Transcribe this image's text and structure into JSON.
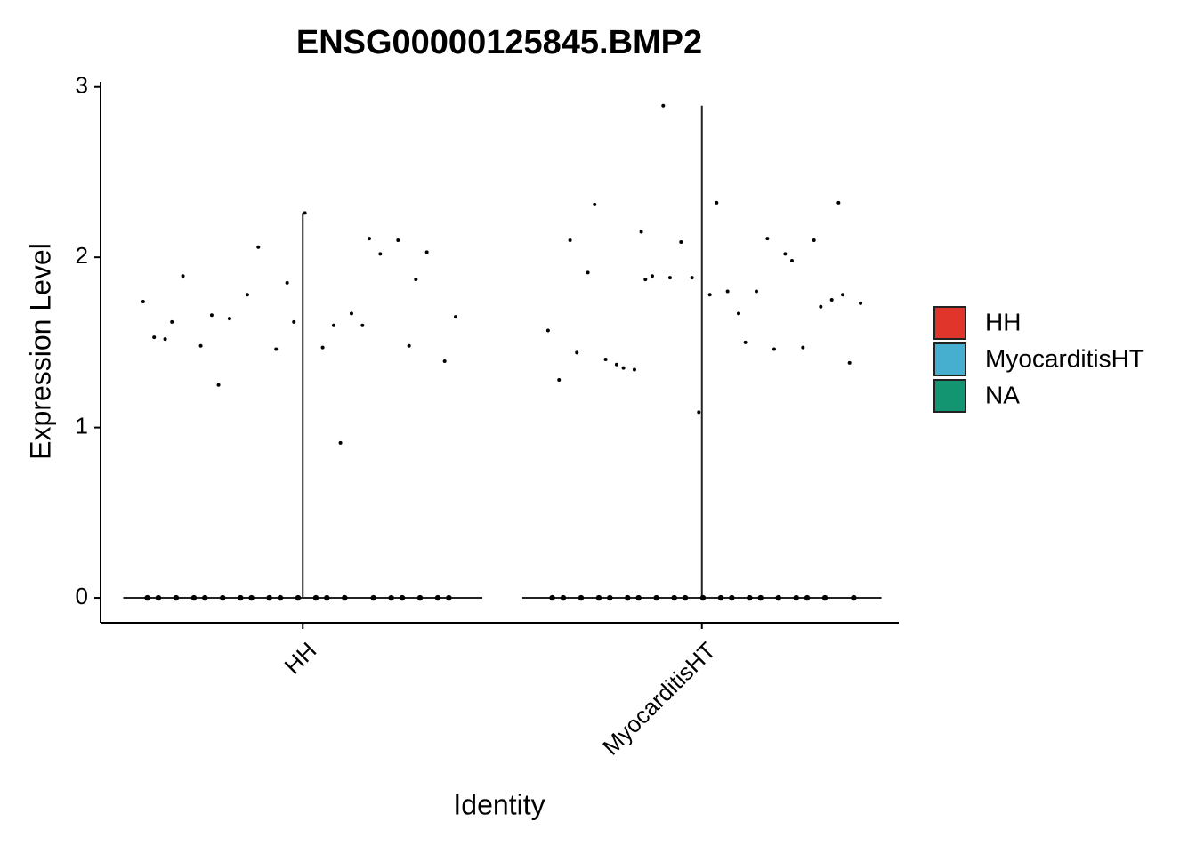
{
  "chart_data": {
    "type": "violin",
    "title": "ENSG00000125845.BMP2",
    "x_label": "Identity",
    "y_label": "Expression Level",
    "categories": [
      "HH",
      "MyocarditisHT"
    ],
    "series": [
      {
        "name": "HH",
        "color": "#E0352B",
        "values": [
          1.74,
          0.91,
          1.25,
          1.87,
          1.62,
          1.62,
          2.11,
          1.78,
          1.39,
          1.47,
          1.48,
          2.1,
          1.46,
          1.53,
          1.67,
          1.64,
          2.03,
          2.26,
          1.89,
          2.02,
          2.06,
          1.65,
          1.6,
          1.66,
          1.48,
          1.85,
          1.52,
          1.6,
          0,
          0,
          0,
          0,
          0,
          0,
          0,
          0,
          0,
          0,
          0,
          0,
          0,
          0,
          0,
          0,
          0,
          0,
          0,
          0
        ]
      },
      {
        "name": "MyocarditisHT",
        "color": "#46AFCF",
        "values": [
          2.15,
          2.32,
          2.32,
          2.31,
          1.98,
          1.88,
          1.57,
          1.5,
          1.35,
          1.71,
          1.09,
          1.44,
          1.46,
          1.89,
          1.38,
          1.8,
          1.4,
          1.47,
          2.09,
          1.28,
          1.8,
          1.34,
          1.75,
          1.78,
          1.91,
          2.02,
          2.89,
          1.73,
          1.67,
          1.37,
          2.1,
          1.88,
          2.1,
          2.11,
          1.87,
          1.78,
          0,
          0,
          0,
          0,
          0,
          0,
          0,
          0,
          0,
          0,
          0,
          0,
          0,
          0,
          0,
          0,
          0,
          0,
          0,
          0
        ]
      }
    ],
    "legend": [
      {
        "name": "HH",
        "color": "#E0352B"
      },
      {
        "name": "MyocarditisHT",
        "color": "#46AFCF"
      },
      {
        "name": "NA",
        "color": "#149572"
      }
    ],
    "ylim": [
      -0.146,
      3.03
    ],
    "yticks": [
      0,
      1,
      2,
      3
    ],
    "grid": false
  }
}
